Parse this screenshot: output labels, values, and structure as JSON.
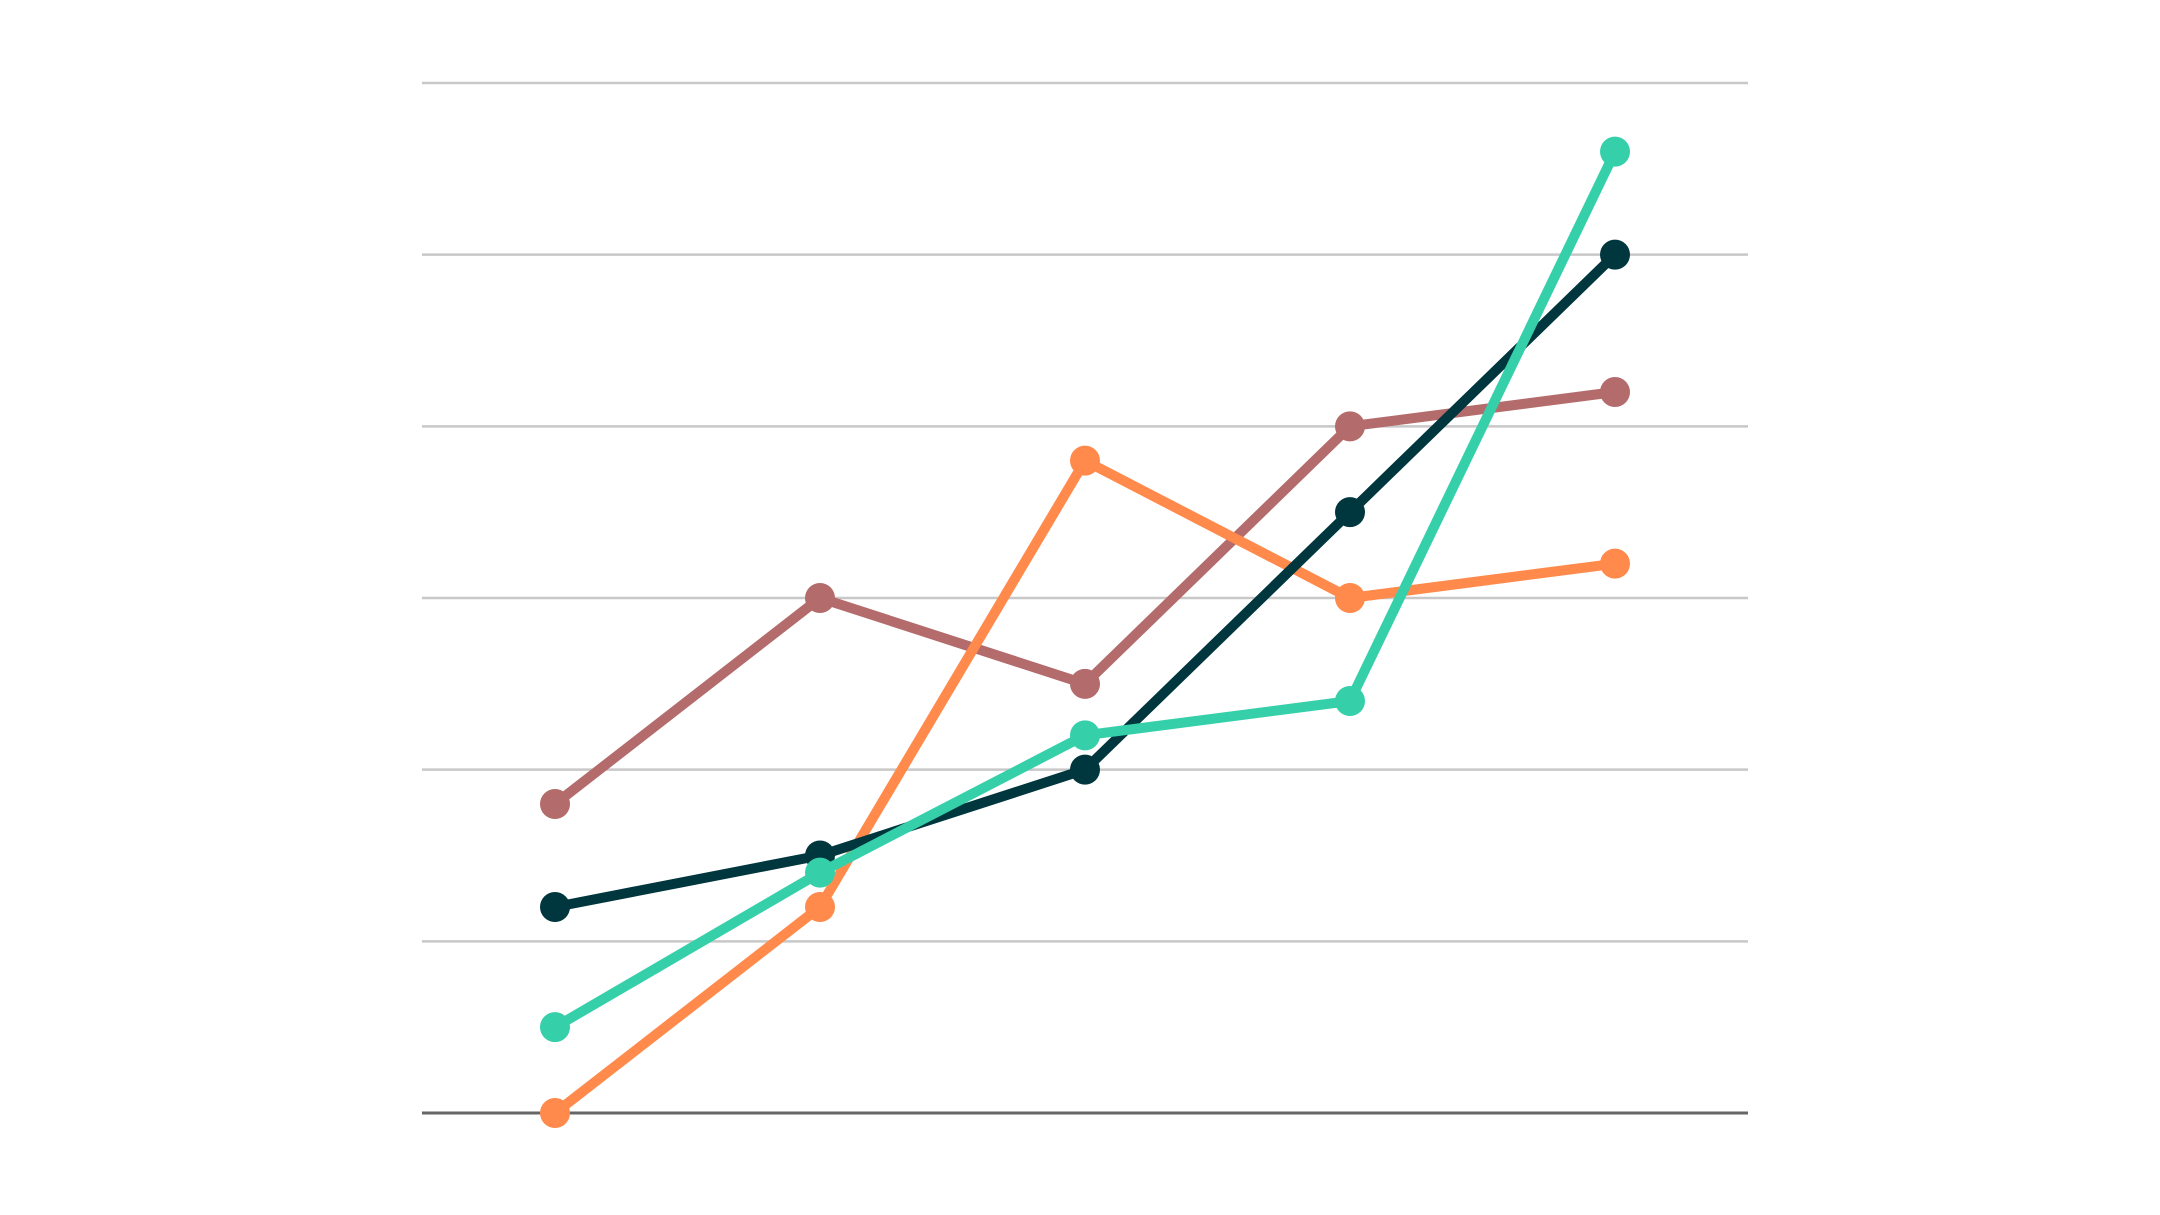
{
  "chart_data": {
    "type": "line",
    "title": "",
    "xlabel": "",
    "ylabel": "",
    "x": [
      1,
      2,
      3,
      4,
      5
    ],
    "ylim": [
      0,
      6
    ],
    "grid": true,
    "legend": "none",
    "series": [
      {
        "color": "#b36b6b",
        "values": [
          1.8,
          3.0,
          2.5,
          4.0,
          4.2
        ]
      },
      {
        "color": "#ff8a4c",
        "values": [
          0.0,
          1.2,
          3.8,
          3.0,
          3.2
        ]
      },
      {
        "color": "#00363d",
        "values": [
          1.2,
          1.5,
          2.0,
          3.5,
          5.0
        ]
      },
      {
        "color": "#35d0aa",
        "values": [
          0.5,
          1.4,
          2.2,
          2.4,
          5.6
        ]
      }
    ]
  },
  "colors": {
    "gridline": "#c8c8c8",
    "baseline": "#666666",
    "background": "#ffffff"
  }
}
